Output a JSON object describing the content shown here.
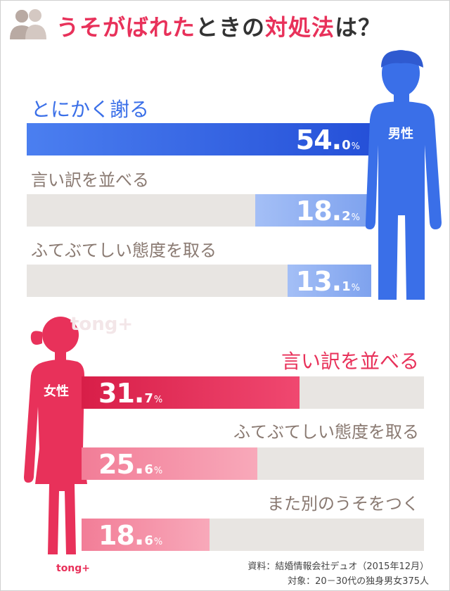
{
  "title": {
    "part1": "うそ",
    "part2": "がばれた",
    "part3": "ときの",
    "part4": "対処法",
    "part5": "は？"
  },
  "watermark": "tong+",
  "logo": "tong+",
  "source": {
    "line1": "資料：結婚情報会社デュオ（2015年12月）",
    "line2": "対象：20－30代の独身男女375人"
  },
  "colors": {
    "male_accent": "#3a6fe8",
    "female_accent": "#e8315a",
    "bar_bg": "#e8e5e2"
  },
  "chart_data": [
    {
      "type": "bar",
      "group_label": "男性",
      "unit": "%",
      "categories": [
        "とにかく謝る",
        "言い訳を並べる",
        "ふてぶてしい態度を取る"
      ],
      "values": [
        54.0,
        18.2,
        13.1
      ],
      "value_labels": [
        {
          "int": "54",
          "dec": "0",
          "unit": "%"
        },
        {
          "int": "18",
          "dec": "2",
          "unit": "%"
        },
        {
          "int": "13",
          "dec": "1",
          "unit": "%"
        }
      ],
      "colors": [
        "#2f5fe0",
        "#8fb0f2",
        "#8fb0f2"
      ]
    },
    {
      "type": "bar",
      "group_label": "女性",
      "unit": "%",
      "categories": [
        "言い訳を並べる",
        "ふてぶてしい態度を取る",
        "また別のうそをつく"
      ],
      "values": [
        31.7,
        25.6,
        18.6
      ],
      "value_labels": [
        {
          "int": "31",
          "dec": "7",
          "unit": "%"
        },
        {
          "int": "25",
          "dec": "6",
          "unit": "%"
        },
        {
          "int": "18",
          "dec": "6",
          "unit": "%"
        }
      ],
      "colors": [
        "#e22e55",
        "#f48ca3",
        "#f48ca3"
      ]
    }
  ]
}
